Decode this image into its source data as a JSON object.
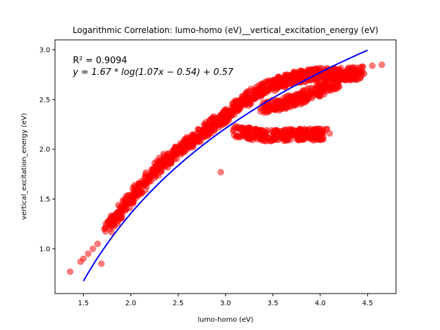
{
  "chart_data": {
    "type": "scatter",
    "title": "Logarithmic Correlation: lumo-homo (eV)__vertical_excitation_energy (eV)",
    "xlabel": "lumo-homo (eV)",
    "ylabel": "vertical_excitation_energy (eV)",
    "xlim": [
      1.2,
      4.8
    ],
    "ylim": [
      0.55,
      3.1
    ],
    "xticks": [
      "1.5",
      "2.0",
      "2.5",
      "3.0",
      "3.5",
      "4.0",
      "4.5"
    ],
    "yticks": [
      "1.0",
      "1.5",
      "2.0",
      "2.5",
      "3.0"
    ],
    "grid": false,
    "annotation": {
      "r2": "R² = 0.9094",
      "equation": "y = 1.67 * log(1.07x − 0.54) + 0.57"
    },
    "fit": {
      "a": 1.67,
      "b": 1.07,
      "c": -0.54,
      "d": 0.57,
      "x_range": [
        1.5,
        4.5
      ],
      "color": "#0000ff"
    },
    "scatter_color": "#ff0000",
    "series": [
      {
        "x": [
          1.36,
          1.47,
          1.5,
          1.55,
          1.6,
          1.65,
          1.69,
          1.72,
          1.78,
          1.82,
          1.9,
          1.95,
          2.0,
          2.1,
          2.2,
          2.3,
          2.45,
          2.6,
          2.75,
          2.9,
          3.0,
          3.1,
          3.25,
          3.4,
          3.55,
          3.7,
          3.85,
          4.0,
          4.15,
          4.3,
          4.45,
          4.55,
          4.65,
          2.95,
          3.15,
          3.35,
          3.55,
          3.75,
          3.95,
          4.1
        ],
        "y": [
          0.77,
          0.87,
          0.9,
          0.95,
          1.0,
          1.05,
          0.85,
          1.2,
          1.2,
          1.3,
          1.38,
          1.45,
          1.52,
          1.62,
          1.72,
          1.82,
          1.95,
          2.05,
          2.15,
          2.27,
          2.33,
          2.43,
          2.52,
          2.61,
          2.68,
          2.73,
          2.76,
          2.79,
          2.8,
          2.82,
          2.83,
          2.84,
          2.85,
          1.77,
          2.2,
          2.16,
          2.13,
          2.17,
          2.17,
          2.16
        ]
      }
    ],
    "band_centers": [
      [
        1.75,
        1.2
      ],
      [
        1.9,
        1.38
      ],
      [
        2.05,
        1.56
      ],
      [
        2.2,
        1.73
      ],
      [
        2.35,
        1.87
      ],
      [
        2.5,
        1.99
      ],
      [
        2.65,
        2.09
      ],
      [
        2.8,
        2.2
      ],
      [
        2.95,
        2.3
      ],
      [
        3.1,
        2.42
      ],
      [
        3.25,
        2.52
      ],
      [
        3.4,
        2.61
      ],
      [
        3.55,
        2.67
      ],
      [
        3.7,
        2.71
      ],
      [
        3.85,
        2.74
      ],
      [
        4.0,
        2.76
      ],
      [
        4.15,
        2.76
      ],
      [
        4.3,
        2.75
      ],
      [
        4.45,
        2.78
      ],
      [
        3.1,
        2.18
      ],
      [
        3.3,
        2.15
      ],
      [
        3.5,
        2.13
      ],
      [
        3.7,
        2.15
      ],
      [
        3.9,
        2.15
      ],
      [
        4.05,
        2.15
      ],
      [
        3.4,
        2.42
      ],
      [
        3.6,
        2.45
      ],
      [
        3.8,
        2.52
      ],
      [
        4.0,
        2.6
      ],
      [
        4.2,
        2.68
      ]
    ]
  }
}
